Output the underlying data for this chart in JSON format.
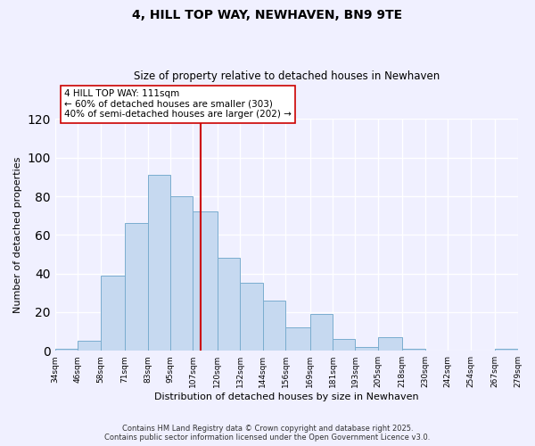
{
  "title": "4, HILL TOP WAY, NEWHAVEN, BN9 9TE",
  "subtitle": "Size of property relative to detached houses in Newhaven",
  "xlabel": "Distribution of detached houses by size in Newhaven",
  "ylabel": "Number of detached properties",
  "bar_color": "#c6d9f0",
  "bar_edge_color": "#7aadcf",
  "background_color": "#f0f0ff",
  "grid_color": "#ffffff",
  "annotation_line_color": "#cc0000",
  "annotation_box_edge": "#cc0000",
  "bins": [
    34,
    46,
    58,
    71,
    83,
    95,
    107,
    120,
    132,
    144,
    156,
    169,
    181,
    193,
    205,
    218,
    230,
    242,
    254,
    267,
    279
  ],
  "bin_labels": [
    "34sqm",
    "46sqm",
    "58sqm",
    "71sqm",
    "83sqm",
    "95sqm",
    "107sqm",
    "120sqm",
    "132sqm",
    "144sqm",
    "156sqm",
    "169sqm",
    "181sqm",
    "193sqm",
    "205sqm",
    "218sqm",
    "230sqm",
    "242sqm",
    "254sqm",
    "267sqm",
    "279sqm"
  ],
  "counts": [
    1,
    5,
    39,
    66,
    91,
    80,
    72,
    48,
    35,
    26,
    12,
    19,
    6,
    2,
    7,
    1,
    0,
    0,
    0,
    1
  ],
  "property_size": 111,
  "annotation_title": "4 HILL TOP WAY: 111sqm",
  "annotation_line1": "← 60% of detached houses are smaller (303)",
  "annotation_line2": "40% of semi-detached houses are larger (202) →",
  "footnote1": "Contains HM Land Registry data © Crown copyright and database right 2025.",
  "footnote2": "Contains public sector information licensed under the Open Government Licence v3.0.",
  "ylim": [
    0,
    120
  ],
  "yticks": [
    0,
    20,
    40,
    60,
    80,
    100,
    120
  ]
}
